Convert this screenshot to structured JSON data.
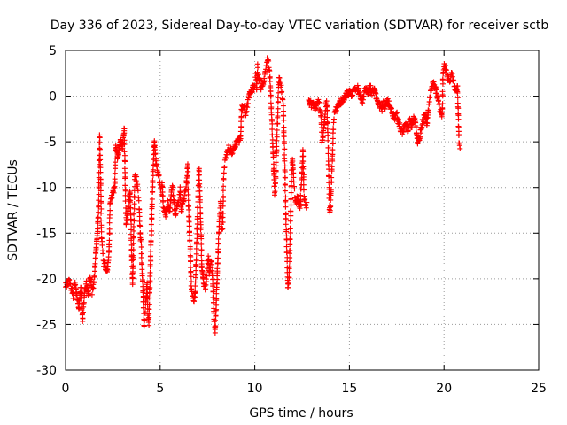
{
  "chart_data": {
    "type": "scatter",
    "title": "Day 336 of 2023, Sidereal Day-to-day VTEC variation (SDTVAR) for receiver sctb",
    "xlabel": "GPS time / hours",
    "ylabel": "SDTVAR / TECUs",
    "xlim": [
      0,
      25
    ],
    "ylim": [
      -30,
      5
    ],
    "xticks": [
      0,
      5,
      10,
      15,
      20,
      25
    ],
    "yticks": [
      -30,
      -25,
      -20,
      -15,
      -10,
      -5,
      0,
      5
    ],
    "xtick_labels": [
      "0",
      "5",
      "10",
      "15",
      "20",
      "25"
    ],
    "ytick_labels": [
      "-30",
      "-25",
      "-20",
      "-15",
      "-10",
      "-5",
      "0",
      "5"
    ],
    "grid": true,
    "marker": "+",
    "color": "#ff0000",
    "series": [
      {
        "name": "SDTVAR",
        "anchors": [
          [
            0.0,
            -20.8
          ],
          [
            0.2,
            -20.2
          ],
          [
            0.4,
            -21.8
          ],
          [
            0.5,
            -20.5
          ],
          [
            0.7,
            -23.2
          ],
          [
            0.8,
            -21.0
          ],
          [
            0.9,
            -24.3
          ],
          [
            1.0,
            -21.5
          ],
          [
            1.1,
            -20.6
          ],
          [
            1.2,
            -21.8
          ],
          [
            1.3,
            -19.8
          ],
          [
            1.4,
            -21.5
          ],
          [
            1.5,
            -20.4
          ],
          [
            1.6,
            -17.2
          ],
          [
            1.7,
            -14.5
          ],
          [
            1.75,
            -12.0
          ],
          [
            1.8,
            -4.5
          ],
          [
            1.85,
            -9.0
          ],
          [
            1.9,
            -15.5
          ],
          [
            1.95,
            -16.5
          ],
          [
            2.0,
            -18.2
          ],
          [
            2.2,
            -19.2
          ],
          [
            2.3,
            -17.0
          ],
          [
            2.35,
            -12.0
          ],
          [
            2.4,
            -11.2
          ],
          [
            2.5,
            -10.5
          ],
          [
            2.6,
            -10.2
          ],
          [
            2.65,
            -5.5
          ],
          [
            2.75,
            -6.8
          ],
          [
            2.9,
            -4.8
          ],
          [
            3.0,
            -5.8
          ],
          [
            3.1,
            -3.5
          ],
          [
            3.2,
            -14.0
          ],
          [
            3.3,
            -12.5
          ],
          [
            3.4,
            -10.5
          ],
          [
            3.45,
            -13.5
          ],
          [
            3.5,
            -17.5
          ],
          [
            3.55,
            -20.5
          ],
          [
            3.6,
            -15.5
          ],
          [
            3.65,
            -9.2
          ],
          [
            3.7,
            -8.6
          ],
          [
            3.8,
            -9.8
          ],
          [
            3.85,
            -11.0
          ],
          [
            3.9,
            -12.5
          ],
          [
            3.95,
            -15.5
          ],
          [
            4.0,
            -16.0
          ],
          [
            4.05,
            -19.5
          ],
          [
            4.1,
            -22.0
          ],
          [
            4.15,
            -25.0
          ],
          [
            4.2,
            -24.0
          ],
          [
            4.25,
            -22.5
          ],
          [
            4.3,
            -20.5
          ],
          [
            4.35,
            -24.0
          ],
          [
            4.4,
            -25.0
          ],
          [
            4.45,
            -21.0
          ],
          [
            4.5,
            -17.5
          ],
          [
            4.55,
            -13.5
          ],
          [
            4.6,
            -10.0
          ],
          [
            4.65,
            -7.0
          ],
          [
            4.7,
            -5.0
          ],
          [
            4.8,
            -7.5
          ],
          [
            4.9,
            -8.5
          ],
          [
            5.0,
            -9.5
          ],
          [
            5.05,
            -10.8
          ],
          [
            5.1,
            -9.5
          ],
          [
            5.15,
            -11.5
          ],
          [
            5.2,
            -12.5
          ],
          [
            5.3,
            -13.0
          ],
          [
            5.35,
            -12.5
          ],
          [
            5.4,
            -11.8
          ],
          [
            5.5,
            -12.5
          ],
          [
            5.6,
            -10.5
          ],
          [
            5.65,
            -9.5
          ],
          [
            5.7,
            -11.0
          ],
          [
            5.8,
            -13.0
          ],
          [
            5.9,
            -12.0
          ],
          [
            6.0,
            -11.5
          ],
          [
            6.05,
            -10.0
          ],
          [
            6.1,
            -12.5
          ],
          [
            6.2,
            -11.8
          ],
          [
            6.3,
            -10.5
          ],
          [
            6.4,
            -9.5
          ],
          [
            6.45,
            -7.5
          ],
          [
            6.5,
            -12.0
          ],
          [
            6.55,
            -14.8
          ],
          [
            6.6,
            -17.5
          ],
          [
            6.65,
            -21.0
          ],
          [
            6.7,
            -21.8
          ],
          [
            6.8,
            -22.3
          ],
          [
            6.85,
            -21.5
          ],
          [
            6.9,
            -18.5
          ],
          [
            6.95,
            -14.5
          ],
          [
            7.0,
            -11.0
          ],
          [
            7.05,
            -8.0
          ],
          [
            7.1,
            -11.0
          ],
          [
            7.15,
            -14.5
          ],
          [
            7.2,
            -18.5
          ],
          [
            7.3,
            -20.5
          ],
          [
            7.4,
            -21.0
          ],
          [
            7.45,
            -20.0
          ],
          [
            7.5,
            -18.5
          ],
          [
            7.55,
            -17.5
          ],
          [
            7.6,
            -19.5
          ],
          [
            7.7,
            -17.8
          ],
          [
            7.75,
            -19.5
          ],
          [
            7.8,
            -22.0
          ],
          [
            7.85,
            -24.5
          ],
          [
            7.9,
            -25.8
          ],
          [
            7.95,
            -23.5
          ],
          [
            8.0,
            -20.5
          ],
          [
            8.05,
            -17.8
          ],
          [
            8.1,
            -15.0
          ],
          [
            8.15,
            -13.2
          ],
          [
            8.2,
            -11.5
          ],
          [
            8.25,
            -14.5
          ],
          [
            8.3,
            -14.5
          ],
          [
            8.35,
            -9.2
          ],
          [
            8.4,
            -7.5
          ],
          [
            8.5,
            -6.5
          ],
          [
            8.6,
            -5.5
          ],
          [
            8.7,
            -5.9
          ],
          [
            8.8,
            -6.2
          ],
          [
            8.9,
            -5.5
          ],
          [
            9.0,
            -5.2
          ],
          [
            9.1,
            -5.0
          ],
          [
            9.2,
            -4.8
          ],
          [
            9.25,
            -4.6
          ],
          [
            9.3,
            -1.5
          ],
          [
            9.4,
            -0.8
          ],
          [
            9.5,
            -2.2
          ],
          [
            9.6,
            -1.0
          ],
          [
            9.7,
            0.0
          ],
          [
            9.8,
            0.5
          ],
          [
            9.9,
            0.8
          ],
          [
            10.0,
            1.0
          ],
          [
            10.05,
            2.5
          ],
          [
            10.1,
            1.0
          ],
          [
            10.15,
            3.2
          ],
          [
            10.2,
            2.0
          ],
          [
            10.3,
            1.5
          ],
          [
            10.35,
            0.8
          ],
          [
            10.4,
            1.0
          ],
          [
            10.5,
            1.8
          ],
          [
            10.55,
            2.8
          ],
          [
            10.6,
            3.5
          ],
          [
            10.7,
            4.2
          ],
          [
            10.75,
            3.3
          ],
          [
            10.8,
            2.0
          ],
          [
            10.85,
            0.0
          ],
          [
            10.9,
            -2.5
          ],
          [
            10.95,
            -5.5
          ],
          [
            11.0,
            -8.0
          ],
          [
            11.05,
            -10.5
          ],
          [
            11.1,
            -9.5
          ],
          [
            11.15,
            -6.0
          ],
          [
            11.2,
            -3.0
          ],
          [
            11.25,
            1.0
          ],
          [
            11.3,
            2.0
          ],
          [
            11.35,
            1.5
          ],
          [
            11.4,
            1.0
          ],
          [
            11.45,
            0.0
          ],
          [
            11.5,
            -1.0
          ],
          [
            11.55,
            -4.5
          ],
          [
            11.6,
            -9.0
          ],
          [
            11.65,
            -13.5
          ],
          [
            11.7,
            -17.0
          ],
          [
            11.75,
            -21.0
          ],
          [
            11.8,
            -20.5
          ],
          [
            11.85,
            -17.0
          ],
          [
            11.9,
            -12.5
          ],
          [
            11.95,
            -8.0
          ],
          [
            12.0,
            -7.0
          ],
          [
            12.05,
            -9.0
          ],
          [
            12.1,
            -10.5
          ],
          [
            12.15,
            -11.5
          ],
          [
            12.2,
            -11.8
          ],
          [
            12.25,
            -11.0
          ],
          [
            12.3,
            -11.5
          ],
          [
            12.35,
            -12.0
          ],
          [
            12.4,
            -12.0
          ],
          [
            12.55,
            -6.0
          ],
          [
            12.6,
            -11.0
          ],
          [
            12.7,
            -12.0
          ],
          [
            12.75,
            -12.0
          ]
        ],
        "anchors2": [
          [
            12.85,
            -0.5
          ],
          [
            13.0,
            -1.0
          ],
          [
            13.1,
            -0.5
          ],
          [
            13.2,
            -1.5
          ],
          [
            13.3,
            -1.0
          ],
          [
            13.4,
            -0.5
          ],
          [
            13.45,
            -1.8
          ],
          [
            13.5,
            -2.2
          ],
          [
            13.55,
            -4.8
          ],
          [
            13.6,
            -4.5
          ],
          [
            13.7,
            -2.5
          ],
          [
            13.75,
            -1.0
          ],
          [
            13.8,
            -0.5
          ],
          [
            13.85,
            -3.0
          ],
          [
            13.9,
            -7.5
          ],
          [
            13.95,
            -12.5
          ],
          [
            14.0,
            -12.0
          ],
          [
            14.05,
            -9.5
          ],
          [
            14.1,
            -6.5
          ],
          [
            14.15,
            -3.5
          ],
          [
            14.2,
            -2.0
          ],
          [
            14.3,
            -1.5
          ],
          [
            14.4,
            -1.0
          ],
          [
            14.5,
            -0.8
          ],
          [
            14.6,
            -0.5
          ],
          [
            14.7,
            -0.3
          ],
          [
            14.8,
            0.0
          ],
          [
            14.9,
            0.3
          ],
          [
            15.0,
            0.5
          ],
          [
            15.1,
            0.0
          ],
          [
            15.2,
            0.5
          ],
          [
            15.3,
            0.8
          ],
          [
            15.4,
            1.0
          ],
          [
            15.5,
            0.5
          ],
          [
            15.6,
            0.0
          ],
          [
            15.7,
            -0.5
          ],
          [
            15.8,
            0.5
          ],
          [
            15.9,
            0.8
          ],
          [
            16.0,
            0.5
          ],
          [
            16.1,
            1.0
          ],
          [
            16.2,
            0.3
          ],
          [
            16.3,
            0.8
          ],
          [
            16.4,
            0.0
          ],
          [
            16.5,
            -0.5
          ],
          [
            16.6,
            -1.0
          ],
          [
            16.7,
            -1.5
          ],
          [
            16.8,
            -0.8
          ],
          [
            16.9,
            -1.2
          ],
          [
            17.0,
            -0.5
          ],
          [
            17.1,
            -1.0
          ],
          [
            17.2,
            -1.5
          ],
          [
            17.3,
            -2.0
          ],
          [
            17.4,
            -2.5
          ],
          [
            17.5,
            -2.0
          ],
          [
            17.6,
            -3.0
          ],
          [
            17.7,
            -3.5
          ],
          [
            17.8,
            -4.0
          ],
          [
            17.9,
            -3.5
          ],
          [
            18.0,
            -3.0
          ],
          [
            18.1,
            -3.8
          ],
          [
            18.2,
            -2.5
          ],
          [
            18.3,
            -3.5
          ],
          [
            18.4,
            -2.0
          ],
          [
            18.5,
            -3.0
          ],
          [
            18.6,
            -5.0
          ],
          [
            18.7,
            -4.5
          ],
          [
            18.8,
            -3.5
          ],
          [
            18.9,
            -2.5
          ],
          [
            19.0,
            -2.0
          ],
          [
            19.1,
            -3.0
          ],
          [
            19.2,
            -1.0
          ],
          [
            19.3,
            0.5
          ],
          [
            19.4,
            1.5
          ],
          [
            19.5,
            1.0
          ],
          [
            19.6,
            0.5
          ],
          [
            19.7,
            -0.5
          ],
          [
            19.8,
            -1.5
          ],
          [
            19.9,
            -2.0
          ],
          [
            19.95,
            2.5
          ],
          [
            20.0,
            3.5
          ],
          [
            20.1,
            3.0
          ],
          [
            20.2,
            2.0
          ],
          [
            20.3,
            1.5
          ],
          [
            20.4,
            2.5
          ],
          [
            20.5,
            1.5
          ],
          [
            20.6,
            0.5
          ],
          [
            20.7,
            1.0
          ],
          [
            20.75,
            -2.0
          ],
          [
            20.8,
            -5.0
          ],
          [
            20.85,
            -5.8
          ]
        ]
      }
    ]
  }
}
